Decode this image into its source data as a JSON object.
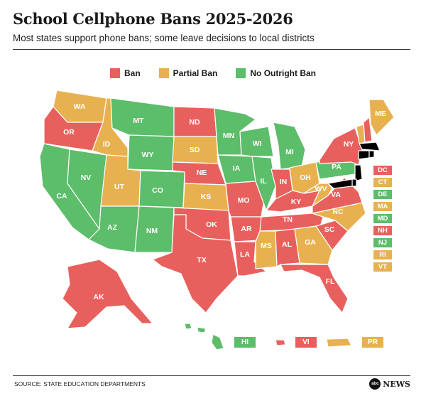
{
  "title": "School Cellphone Bans 2025-2026",
  "subtitle": "Most states support phone bans; some leave decisions to local districts",
  "colors": {
    "ban": "#e8605d",
    "partial": "#e8b14f",
    "none": "#5cbd6a"
  },
  "legend": [
    {
      "label": "Ban",
      "status": "ban"
    },
    {
      "label": "Partial Ban",
      "status": "partial"
    },
    {
      "label": "No Outright Ban",
      "status": "none"
    }
  ],
  "states": {
    "WA": "partial",
    "OR": "ban",
    "CA": "none",
    "ID": "partial",
    "NV": "none",
    "MT": "none",
    "WY": "none",
    "UT": "partial",
    "AZ": "none",
    "CO": "none",
    "NM": "none",
    "ND": "ban",
    "SD": "partial",
    "NE": "ban",
    "KS": "partial",
    "OK": "ban",
    "TX": "ban",
    "MN": "none",
    "IA": "none",
    "MO": "ban",
    "AR": "ban",
    "LA": "ban",
    "WI": "none",
    "IL": "none",
    "MI": "none",
    "IN": "ban",
    "OH": "partial",
    "KY": "ban",
    "TN": "ban",
    "MS": "partial",
    "AL": "ban",
    "GA": "partial",
    "FL": "ban",
    "SC": "ban",
    "NC": "partial",
    "VA": "ban",
    "WV": "partial",
    "PA": "none",
    "NY": "ban",
    "ME": "partial",
    "VT": "partial",
    "NH": "ban",
    "AK": "ban"
  },
  "small_states": [
    {
      "label": "DC",
      "status": "ban"
    },
    {
      "label": "CT",
      "status": "partial"
    },
    {
      "label": "DE",
      "status": "none"
    },
    {
      "label": "MA",
      "status": "partial"
    },
    {
      "label": "MD",
      "status": "none"
    },
    {
      "label": "NH",
      "status": "ban"
    },
    {
      "label": "NJ",
      "status": "none"
    },
    {
      "label": "RI",
      "status": "partial"
    },
    {
      "label": "VT",
      "status": "partial"
    }
  ],
  "territories": [
    {
      "label": "HI",
      "status": "none"
    },
    {
      "label": "VI",
      "status": "ban"
    },
    {
      "label": "PR",
      "status": "partial"
    }
  ],
  "source": "SOURCE: STATE EDUCATION DEPARTMENTS",
  "brand": "NEWS",
  "brand_logo": "abc"
}
